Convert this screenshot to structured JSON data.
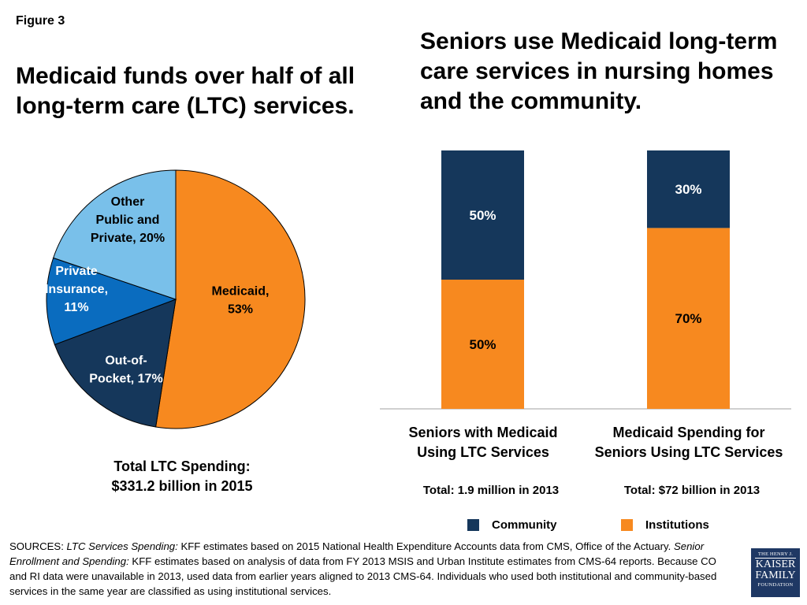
{
  "figure_label": "Figure 3",
  "left_title": "Medicaid funds over half of all long-term care (LTC) services.",
  "right_title": "Seniors use Medicaid long-term care services in nursing homes and the community.",
  "colors": {
    "medicaid": "#f7891f",
    "out_of_pocket": "#15375b",
    "private_insurance": "#0a6cbf",
    "other": "#79c0ea",
    "community": "#15375b",
    "institutions": "#f7891f"
  },
  "chart_data": [
    {
      "type": "pie",
      "slices": [
        {
          "label_lines": [
            "Medicaid,",
            "53%"
          ],
          "value": 53,
          "color": "#f7891f"
        },
        {
          "label_lines": [
            "Out-of-",
            "Pocket, 17%"
          ],
          "value": 17,
          "color": "#15375b"
        },
        {
          "label_lines": [
            "Private",
            "Insurance,",
            "11%"
          ],
          "value": 11,
          "color": "#0a6cbf"
        },
        {
          "label_lines": [
            "Other",
            "Public and",
            "Private, 20%"
          ],
          "value": 20,
          "color": "#79c0ea"
        }
      ],
      "total_lines": [
        "Total LTC Spending:",
        "$331.2 billion in 2015"
      ]
    },
    {
      "type": "bar",
      "stacked": true,
      "categories": [
        {
          "lines": [
            "Seniors with Medicaid",
            "Using LTC Services"
          ],
          "total": "Total: 1.9 million in 2013"
        },
        {
          "lines": [
            "Medicaid Spending for",
            "Seniors Using LTC Services"
          ],
          "total": "Total: $72 billion in 2013"
        }
      ],
      "series": [
        {
          "name": "Institutions",
          "values": [
            50,
            70
          ],
          "labels": [
            "50%",
            "70%"
          ],
          "color": "#f7891f"
        },
        {
          "name": "Community",
          "values": [
            50,
            30
          ],
          "labels": [
            "50%",
            "30%"
          ],
          "color": "#15375b"
        }
      ],
      "ylim": [
        0,
        100
      ],
      "legend": [
        {
          "name": "Community",
          "color": "#15375b"
        },
        {
          "name": "Institutions",
          "color": "#f7891f"
        }
      ],
      "legend_position": "bottom"
    }
  ],
  "sources": {
    "prefix": "SOURCES: ",
    "lead1": "LTC Services Spending:",
    "text1": " KFF estimates based on 2015 National Health Expenditure Accounts data from CMS, Office of the Actuary. ",
    "lead2": "Senior Enrollment and Spending:",
    "text2": " KFF estimates based on analysis of data from FY 2013 MSIS and Urban Institute estimates from CMS-64 reports. Because CO and RI data were unavailable in 2013, used data from earlier years aligned to 2013 CMS-64. Individuals who used both institutional and community-based services in the same year are classified as using institutional services."
  },
  "logo": {
    "line1": "THE HENRY J.",
    "line2": "KAISER",
    "line3": "FAMILY",
    "line4": "FOUNDATION"
  }
}
